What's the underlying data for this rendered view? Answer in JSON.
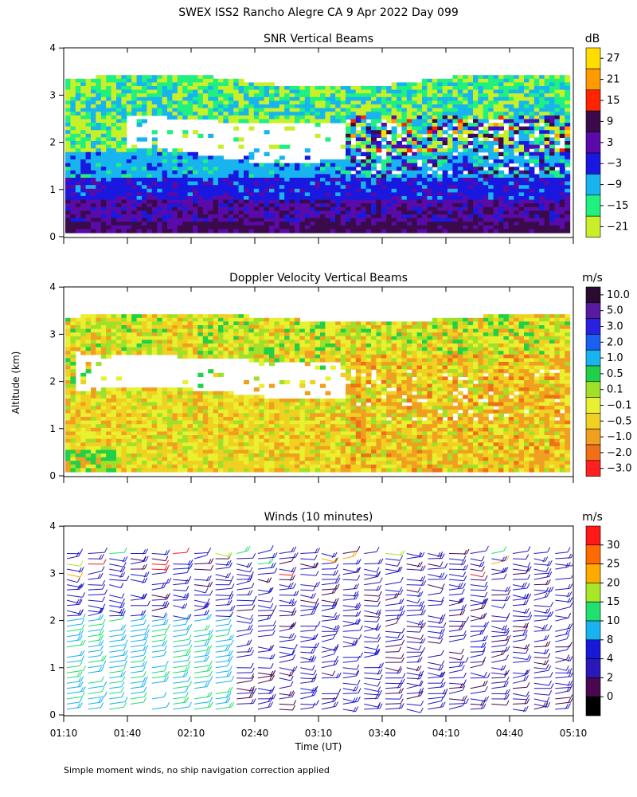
{
  "header": {
    "title": "SWEX ISS2 Rancho Alegre CA   9 Apr 2022 Day 099"
  },
  "footer": {
    "note": "Simple moment winds, no ship navigation correction applied"
  },
  "axes": {
    "y_label": "Altitude (km)",
    "x_label": "Time (UT)",
    "y_ticks": [
      "0",
      "1",
      "2",
      "3",
      "4"
    ],
    "x_ticks": [
      "01:10",
      "01:40",
      "02:10",
      "02:40",
      "03:10",
      "03:40",
      "04:10",
      "04:40",
      "05:10"
    ]
  },
  "chart_data": [
    {
      "type": "heatmap",
      "title": "SNR Vertical Beams",
      "xlabel": "",
      "ylabel": "Altitude (km)",
      "xlim": [
        "01:10",
        "05:10"
      ],
      "ylim": [
        0,
        4
      ],
      "colorbar": {
        "unit": "dB",
        "labels": [
          "27",
          "21",
          "15",
          "9",
          "3",
          "−3",
          "−9",
          "−15",
          "−21"
        ],
        "colors": [
          "#ffdd00",
          "#ff9a00",
          "#ff2400",
          "#3a0a4a",
          "#5a0aa8",
          "#1818e0",
          "#18b4f0",
          "#20f080",
          "#c8f028"
        ]
      },
      "regions": [
        {
          "y_km": [
            0.1,
            0.7
          ],
          "field": "dark purple / violet (high SNR)"
        },
        {
          "y_km": [
            0.7,
            1.3
          ],
          "field": "blue"
        },
        {
          "y_km": [
            1.3,
            1.8
          ],
          "field": "cyan"
        },
        {
          "y_km": [
            1.7,
            2.6
          ],
          "field": "white gap (no data) on left half"
        },
        {
          "y_km": [
            2.5,
            3.4
          ],
          "field": "green / cyan / yellow-green"
        },
        {
          "y_km": [
            1.0,
            2.5
          ],
          "field": "scattered purple, red, orange patches on right half"
        }
      ]
    },
    {
      "type": "heatmap",
      "title": "Doppler Velocity Vertical Beams",
      "xlabel": "",
      "ylabel": "Altitude (km)",
      "xlim": [
        "01:10",
        "05:10"
      ],
      "ylim": [
        0,
        4
      ],
      "colorbar": {
        "unit": "m/s",
        "labels": [
          "10.0",
          "5.0",
          "3.0",
          "2.0",
          "1.0",
          "0.5",
          "0.1",
          "−0.1",
          "−0.5",
          "−1.0",
          "−2.0",
          "−3.0"
        ],
        "colors": [
          "#2a0a30",
          "#5a1aa0",
          "#2a20e0",
          "#1a60f0",
          "#18b4f0",
          "#20d048",
          "#a0e028",
          "#e8f030",
          "#f0d020",
          "#f0a020",
          "#f07018",
          "#ff2020"
        ]
      },
      "regions": [
        {
          "y_km": [
            0.1,
            1.8
          ],
          "field": "yellow / orange (weak downward)"
        },
        {
          "y_km": [
            1.8,
            2.6
          ],
          "field": "white gap (no data) on left half"
        },
        {
          "y_km": [
            2.5,
            3.4
          ],
          "field": "yellow / green / orange mix"
        }
      ]
    },
    {
      "type": "scatter",
      "title": "Winds (10 minutes)",
      "xlabel": "Time (UT)",
      "ylabel": "Altitude (km)",
      "xlim": [
        "01:10",
        "05:10"
      ],
      "ylim": [
        0,
        4
      ],
      "colorbar": {
        "unit": "m/s",
        "labels": [
          "30",
          "25",
          "20",
          "15",
          "10",
          "8",
          "4",
          "2",
          "0"
        ],
        "colors": [
          "#ff1818",
          "#ff6a00",
          "#ffaa00",
          "#a8e628",
          "#20e070",
          "#18b4f0",
          "#1818d8",
          "#2a18b8",
          "#4a0850",
          "#000000"
        ]
      },
      "times": [
        "01:10",
        "01:20",
        "01:30",
        "01:40",
        "01:50",
        "02:00",
        "02:10",
        "02:20",
        "02:30",
        "02:40",
        "02:50",
        "03:00",
        "03:10",
        "03:20",
        "03:30",
        "03:40",
        "03:50",
        "04:00",
        "04:10",
        "04:20",
        "04:30",
        "04:40",
        "04:50",
        "05:00",
        "05:10"
      ],
      "profiles": [
        {
          "y_km": [
            0.1,
            2.0
          ],
          "speed_ms": [
            8,
            15
          ],
          "note": "cyan/green barbs below 2 km during 01:10-02:20"
        },
        {
          "y_km": [
            0.1,
            3.3
          ],
          "speed_ms": [
            2,
            8
          ],
          "note": "blue/purple barbs elsewhere"
        },
        {
          "y_km": [
            3.0,
            3.6
          ],
          "speed_ms": [
            10,
            30
          ],
          "note": "occasional green/orange/red barbs near top"
        }
      ]
    }
  ]
}
